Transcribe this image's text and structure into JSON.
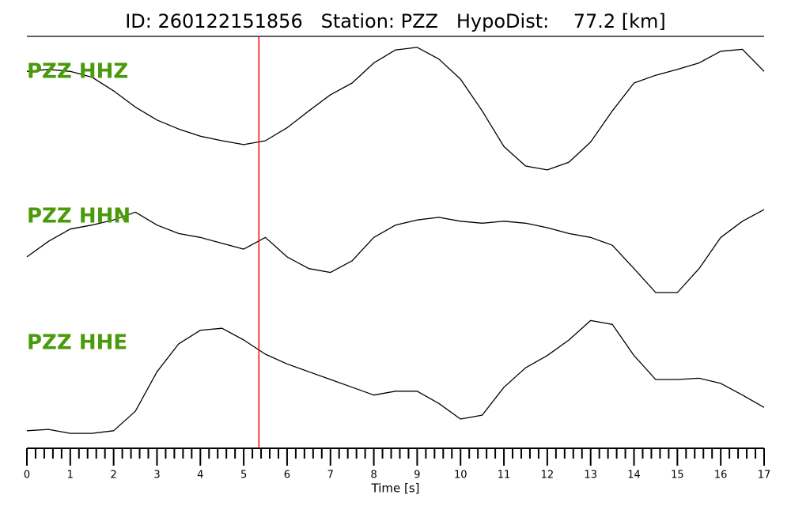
{
  "chart_data": {
    "type": "line",
    "title": "ID: 260122151856   Station: PZZ   HypoDist:    77.2 [km]",
    "xlabel": "Time [s]",
    "x": [
      0,
      0.5,
      1,
      1.5,
      2,
      2.5,
      3,
      3.5,
      4,
      4.5,
      5,
      5.5,
      6,
      6.5,
      7,
      7.5,
      8,
      8.5,
      9,
      9.5,
      10,
      10.5,
      11,
      11.5,
      12,
      12.5,
      13,
      13.5,
      14,
      14.5,
      15,
      15.5,
      16,
      16.5,
      17
    ],
    "series": [
      {
        "name": "PZZ HHZ",
        "color": "#000000",
        "values": [
          0.57,
          0.6,
          0.57,
          0.48,
          0.27,
          0.02,
          -0.18,
          -0.32,
          -0.43,
          -0.5,
          -0.56,
          -0.5,
          -0.3,
          -0.04,
          0.21,
          0.39,
          0.7,
          0.9,
          0.94,
          0.76,
          0.45,
          -0.04,
          -0.59,
          -0.89,
          -0.95,
          -0.83,
          -0.52,
          -0.04,
          0.39,
          0.51,
          0.6,
          0.7,
          0.88,
          0.91,
          0.57
        ]
      },
      {
        "name": "PZZ HHN",
        "color": "#000000",
        "values": [
          -0.06,
          0.18,
          0.37,
          0.43,
          0.51,
          0.63,
          0.43,
          0.3,
          0.24,
          0.15,
          0.06,
          0.24,
          -0.06,
          -0.24,
          -0.3,
          -0.12,
          0.24,
          0.43,
          0.51,
          0.55,
          0.49,
          0.46,
          0.49,
          0.46,
          0.39,
          0.3,
          0.24,
          0.12,
          -0.24,
          -0.61,
          -0.61,
          -0.24,
          0.24,
          0.49,
          0.67
        ]
      },
      {
        "name": "PZZ HHE",
        "color": "#000000",
        "values": [
          -0.79,
          -0.77,
          -0.83,
          -0.83,
          -0.79,
          -0.49,
          0.12,
          0.55,
          0.76,
          0.79,
          0.61,
          0.39,
          0.24,
          0.12,
          0,
          -0.12,
          -0.24,
          -0.18,
          -0.18,
          -0.37,
          -0.61,
          -0.55,
          -0.12,
          0.18,
          0.37,
          0.61,
          0.91,
          0.85,
          0.37,
          0,
          0,
          0.02,
          -0.06,
          -0.24,
          -0.43
        ]
      }
    ],
    "label_color": "#4a9a0a",
    "xlim": [
      0,
      17
    ],
    "xticks": [
      0,
      1,
      2,
      3,
      4,
      5,
      6,
      7,
      8,
      9,
      10,
      11,
      12,
      13,
      14,
      15,
      16,
      17
    ],
    "xminorticks": [
      0.2,
      0.4,
      0.6,
      0.8,
      1.2,
      1.4,
      1.6,
      1.8,
      2.2,
      2.4,
      2.6,
      2.8,
      3.2,
      3.4,
      3.6,
      3.8,
      4.2,
      4.4,
      4.6,
      4.8,
      5.2,
      5.4,
      5.6,
      5.8,
      6.2,
      6.4,
      6.6,
      6.8,
      7.2,
      7.4,
      7.6,
      7.8,
      8.2,
      8.4,
      8.6,
      8.8,
      9.2,
      9.4,
      9.6,
      9.8,
      10.2,
      10.4,
      10.6,
      10.8,
      11.2,
      11.4,
      11.6,
      11.8,
      12.2,
      12.4,
      12.6,
      12.8,
      13.2,
      13.4,
      13.6,
      13.8,
      14.2,
      14.4,
      14.6,
      14.8,
      15.2,
      15.4,
      15.6,
      15.8,
      16.2,
      16.4,
      16.6,
      16.8
    ],
    "ylim": [
      -1,
      1
    ],
    "pick_time": 5.35,
    "pick_color": "#ff0000"
  }
}
